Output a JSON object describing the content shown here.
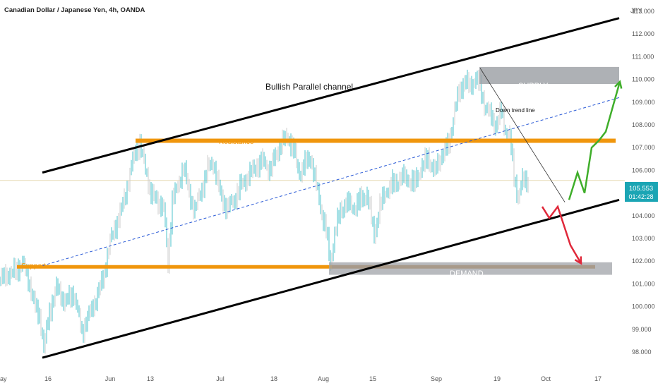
{
  "header": {
    "title": "Canadian Dollar / Japanese Yen, 4h, OANDA",
    "currency": "JPY"
  },
  "price_label": {
    "value": "105.553",
    "countdown": "01:42:28",
    "color": "#1ba5b4"
  },
  "colors": {
    "candle": "#4dc3cc",
    "candle_alt": "#cccccc",
    "channel": "#000000",
    "level": "#f0960c",
    "zone": "#a0a3a8",
    "up_arrow": "#3fae2a",
    "down_arrow": "#e0283a",
    "midline": "#2a5ad6"
  },
  "chart_data": {
    "type": "line",
    "title": "Canadian Dollar / Japanese Yen, 4h, OANDA",
    "xlabel": "",
    "ylabel": "",
    "x_ticks": [
      "ay",
      "16",
      "Jun",
      "13",
      "Jul",
      "18",
      "Aug",
      "15",
      "Sep",
      "19",
      "Oct",
      "17"
    ],
    "y_ticks": [
      "113.000",
      "112.000",
      "111.000",
      "110.000",
      "109.000",
      "108.000",
      "107.000",
      "106.000",
      "104.000",
      "103.000",
      "102.000",
      "101.000",
      "100.000",
      "99.000",
      "98.000"
    ],
    "ylim": [
      97.7,
      113.3
    ],
    "x_domain": "bar index 0-932 (4h bars)",
    "series": [
      {
        "values": [
          [
            0,
            101.2
          ],
          [
            18,
            101.5
          ],
          [
            32,
            101.9
          ],
          [
            42,
            101.0
          ],
          [
            50,
            100.0
          ],
          [
            57,
            99.5
          ],
          [
            62,
            98.1
          ],
          [
            70,
            99.8
          ],
          [
            80,
            100.8
          ],
          [
            92,
            100.2
          ],
          [
            104,
            100.6
          ],
          [
            116,
            98.9
          ],
          [
            124,
            99.5
          ],
          [
            135,
            100.2
          ],
          [
            146,
            101.3
          ],
          [
            156,
            102.8
          ],
          [
            164,
            103.6
          ],
          [
            172,
            104.3
          ],
          [
            180,
            105.2
          ],
          [
            187,
            106.3
          ],
          [
            192,
            106.9
          ],
          [
            198,
            107.2
          ],
          [
            206,
            106.0
          ],
          [
            214,
            105.0
          ],
          [
            224,
            104.6
          ],
          [
            232,
            104.3
          ],
          [
            238,
            101.9
          ],
          [
            244,
            104.8
          ],
          [
            252,
            105.2
          ],
          [
            260,
            106.2
          ],
          [
            268,
            105.0
          ],
          [
            276,
            104.2
          ],
          [
            286,
            105.2
          ],
          [
            294,
            106.1
          ],
          [
            302,
            106.3
          ],
          [
            312,
            105.0
          ],
          [
            322,
            104.3
          ],
          [
            330,
            104.6
          ],
          [
            342,
            105.4
          ],
          [
            352,
            105.7
          ],
          [
            362,
            106.2
          ],
          [
            372,
            106.4
          ],
          [
            382,
            106.0
          ],
          [
            392,
            106.8
          ],
          [
            400,
            107.2
          ],
          [
            408,
            107.5
          ],
          [
            416,
            106.9
          ],
          [
            424,
            105.8
          ],
          [
            432,
            106.3
          ],
          [
            440,
            106.6
          ],
          [
            448,
            105.3
          ],
          [
            456,
            104.1
          ],
          [
            462,
            103.4
          ],
          [
            468,
            101.8
          ],
          [
            474,
            103.2
          ],
          [
            482,
            104.2
          ],
          [
            490,
            104.6
          ],
          [
            500,
            104.3
          ],
          [
            510,
            104.7
          ],
          [
            520,
            104.9
          ],
          [
            530,
            103.2
          ],
          [
            538,
            104.4
          ],
          [
            546,
            105.0
          ],
          [
            556,
            105.4
          ],
          [
            566,
            105.6
          ],
          [
            576,
            105.7
          ],
          [
            586,
            105.4
          ],
          [
            596,
            106.0
          ],
          [
            606,
            106.6
          ],
          [
            616,
            105.9
          ],
          [
            626,
            106.7
          ],
          [
            636,
            107.2
          ],
          [
            644,
            108.6
          ],
          [
            650,
            109.4
          ],
          [
            658,
            110.0
          ],
          [
            666,
            109.6
          ],
          [
            674,
            110.1
          ],
          [
            680,
            109.7
          ],
          [
            686,
            108.9
          ],
          [
            694,
            108.4
          ],
          [
            702,
            108.0
          ],
          [
            710,
            108.6
          ],
          [
            716,
            107.7
          ],
          [
            722,
            107.5
          ],
          [
            728,
            105.8
          ],
          [
            734,
            104.8
          ],
          [
            740,
            105.5
          ],
          [
            748,
            105.6
          ]
        ]
      }
    ],
    "grid": false,
    "annotations": [
      {
        "label": "Bullish Parallel channel",
        "kind": "text"
      },
      {
        "label": "Resistance",
        "kind": "horizontal_level",
        "y": 107.3
      },
      {
        "label": "Support",
        "kind": "horizontal_level",
        "y": 101.75
      },
      {
        "label": "SUPPLY",
        "kind": "zone",
        "y_range": [
          109.8,
          110.55
        ]
      },
      {
        "label": "DEMAND",
        "kind": "zone",
        "y_range": [
          101.4,
          101.95
        ]
      },
      {
        "label": "Down trend line",
        "kind": "trendline"
      }
    ],
    "upper_channel": [
      [
        60,
        105.9
      ],
      [
        877,
        112.7
      ]
    ],
    "lower_channel": [
      [
        60,
        97.75
      ],
      [
        877,
        104.7
      ]
    ],
    "mid_channel": [
      [
        60,
        101.8
      ],
      [
        877,
        109.2
      ]
    ],
    "down_trend": [
      [
        680,
        110.5
      ],
      [
        800,
        104.6
      ]
    ],
    "up_projection": [
      [
        806,
        104.7
      ],
      [
        818,
        105.9
      ],
      [
        828,
        105.0
      ],
      [
        838,
        107.0
      ],
      [
        848,
        107.3
      ],
      [
        858,
        107.7
      ],
      [
        868,
        108.8
      ],
      [
        878,
        109.9
      ]
    ],
    "down_projection": [
      [
        768,
        104.4
      ],
      [
        778,
        103.9
      ],
      [
        790,
        104.4
      ],
      [
        808,
        102.7
      ],
      [
        823,
        101.9
      ]
    ]
  }
}
